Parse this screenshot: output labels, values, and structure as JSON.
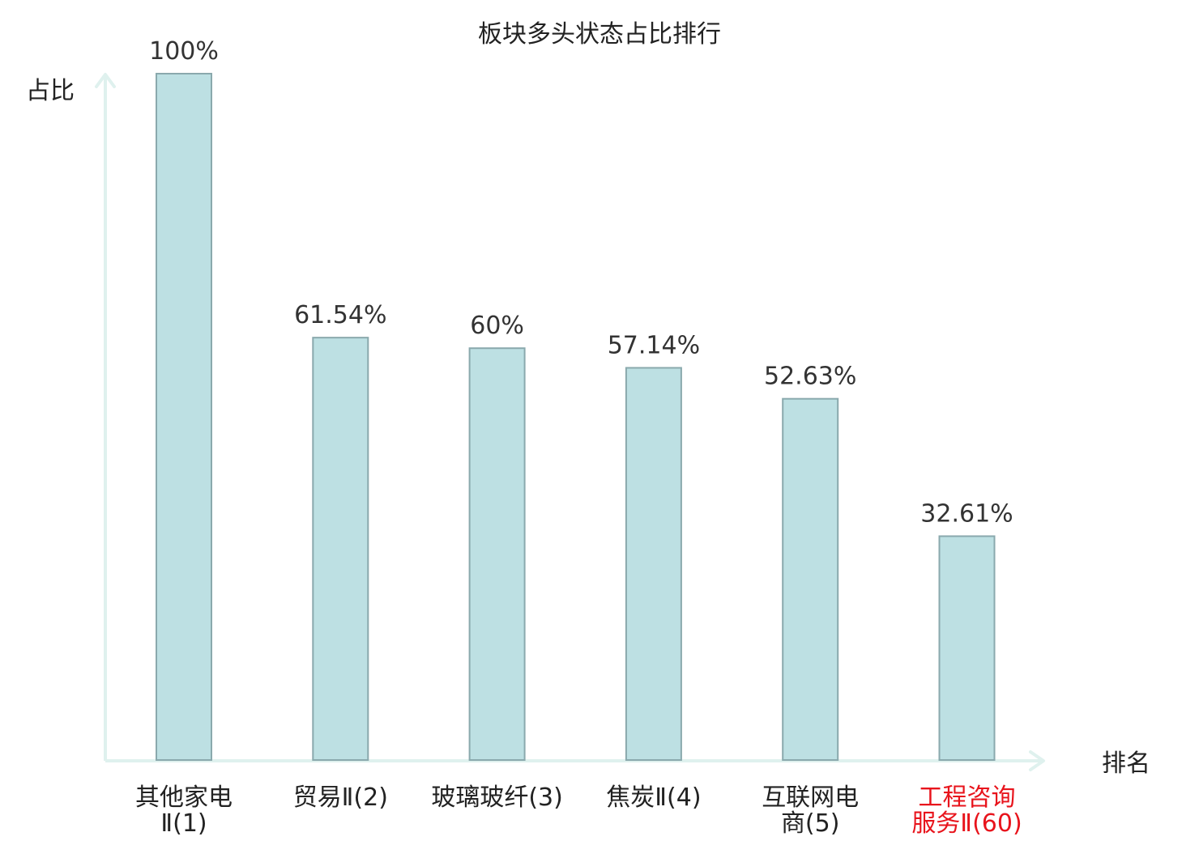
{
  "chart_data": {
    "type": "bar",
    "title": "板块多头状态占比排行",
    "xlabel": "排名",
    "ylabel": "占比",
    "ylim": [
      0,
      100
    ],
    "grid": false,
    "legend": "none",
    "categories": [
      [
        "其他家电",
        "Ⅱ(1)"
      ],
      [
        "贸易Ⅱ(2)"
      ],
      [
        "玻璃玻纤(3)"
      ],
      [
        "焦炭Ⅱ(4)"
      ],
      [
        "互联网电",
        "商(5)"
      ],
      [
        "工程咨询",
        "服务Ⅱ(60)"
      ]
    ],
    "values": [
      100,
      61.54,
      60,
      57.14,
      52.63,
      32.61
    ],
    "value_labels": [
      "100%",
      "61.54%",
      "60%",
      "57.14%",
      "52.63%",
      "32.61%"
    ],
    "highlight_index": 5,
    "colors": {
      "bar_fill": "#bde0e3",
      "bar_stroke": "#8aa9ad",
      "axis": "#dff1ee",
      "text": "#222222",
      "value_text": "#333333",
      "highlight_text": "#e8141c"
    }
  }
}
